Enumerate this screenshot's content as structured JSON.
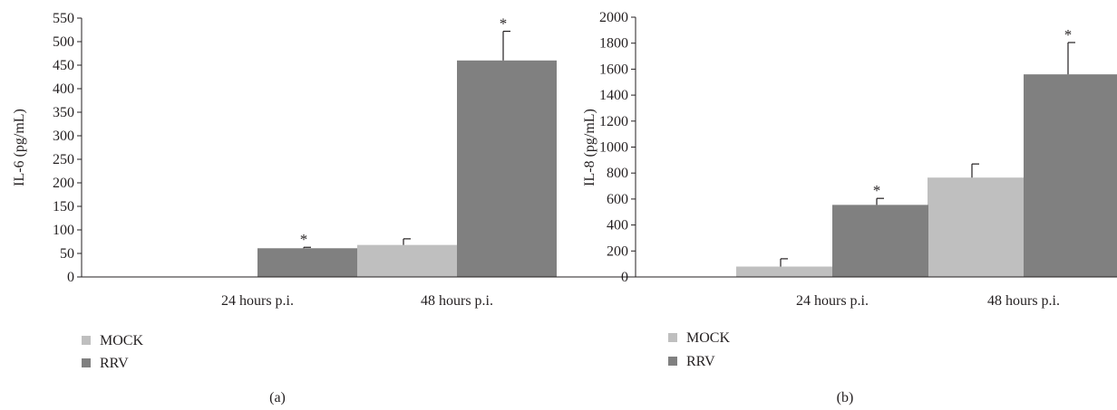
{
  "colors": {
    "mock": "#bfbfbf",
    "rrv": "#808080",
    "axis": "#231f20",
    "error": "#231f20"
  },
  "legend": [
    {
      "key": "mock",
      "label": "MOCK"
    },
    {
      "key": "rrv",
      "label": "RRV"
    }
  ],
  "chart_data": [
    {
      "type": "bar",
      "panel_label": "(a)",
      "ylabel": "IL-6 (pg/mL)",
      "ylim": [
        0,
        550
      ],
      "yticks": [
        0,
        50,
        100,
        150,
        200,
        250,
        300,
        350,
        400,
        450,
        500,
        550
      ],
      "categories": [
        "24 hours p.i.",
        "48 hours p.i."
      ],
      "series": [
        {
          "name": "MOCK",
          "key": "mock",
          "values": [
            0,
            68
          ],
          "errors": [
            0,
            13
          ],
          "significant": [
            false,
            false
          ]
        },
        {
          "name": "RRV",
          "key": "rrv",
          "values": [
            61,
            460
          ],
          "errors": [
            2,
            62
          ],
          "significant": [
            true,
            true
          ]
        }
      ],
      "significance_marker": "*",
      "legend_position": "bottom-left",
      "grid": false
    },
    {
      "type": "bar",
      "panel_label": "(b)",
      "ylabel": "IL-8 (pg/mL)",
      "ylim": [
        0,
        2000
      ],
      "yticks": [
        0,
        200,
        400,
        600,
        800,
        1000,
        1200,
        1400,
        1600,
        1800,
        2000
      ],
      "categories": [
        "24 hours p.i.",
        "48 hours p.i."
      ],
      "series": [
        {
          "name": "MOCK",
          "key": "mock",
          "values": [
            80,
            765
          ],
          "errors": [
            60,
            105
          ],
          "significant": [
            false,
            false
          ]
        },
        {
          "name": "RRV",
          "key": "rrv",
          "values": [
            555,
            1560
          ],
          "errors": [
            50,
            245
          ],
          "significant": [
            true,
            true
          ]
        }
      ],
      "significance_marker": "*",
      "legend_position": "bottom-left",
      "grid": false
    }
  ]
}
